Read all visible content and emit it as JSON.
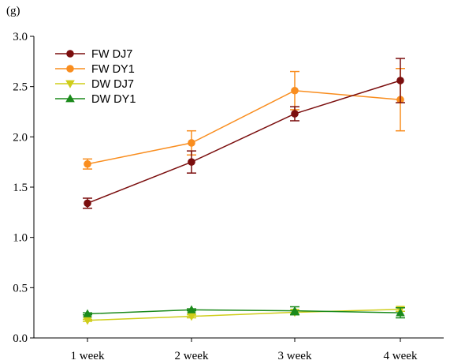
{
  "chart_data": {
    "type": "line",
    "unit_label": "(g)",
    "categories": [
      "1 week",
      "2 week",
      "3 week",
      "4 week"
    ],
    "ylim": [
      0,
      3.0
    ],
    "yticks": [
      "0.0",
      "0.5",
      "1.0",
      "1.5",
      "2.0",
      "2.5",
      "3.0"
    ],
    "grid": false,
    "legend_placement": "top-left",
    "series": [
      {
        "name": "FW DJ7",
        "color": "#7b0e0e",
        "marker": "circle",
        "values": [
          1.34,
          1.75,
          2.23,
          2.56
        ],
        "errors": [
          0.05,
          0.11,
          0.07,
          0.22
        ]
      },
      {
        "name": "FW DY1",
        "color": "#f98d1e",
        "marker": "circle",
        "values": [
          1.73,
          1.94,
          2.46,
          2.37
        ],
        "errors": [
          0.05,
          0.12,
          0.19,
          0.31
        ]
      },
      {
        "name": "DW DJ7",
        "color": "#cfcd1a",
        "marker": "triangle-down",
        "values": [
          0.175,
          0.215,
          0.255,
          0.285
        ],
        "errors": [
          0.01,
          0.015,
          0.02,
          0.02
        ]
      },
      {
        "name": "DW DY1",
        "color": "#1b8a1b",
        "marker": "triangle-up",
        "values": [
          0.24,
          0.28,
          0.27,
          0.25
        ],
        "errors": [
          0.01,
          0.01,
          0.04,
          0.05
        ]
      }
    ]
  }
}
